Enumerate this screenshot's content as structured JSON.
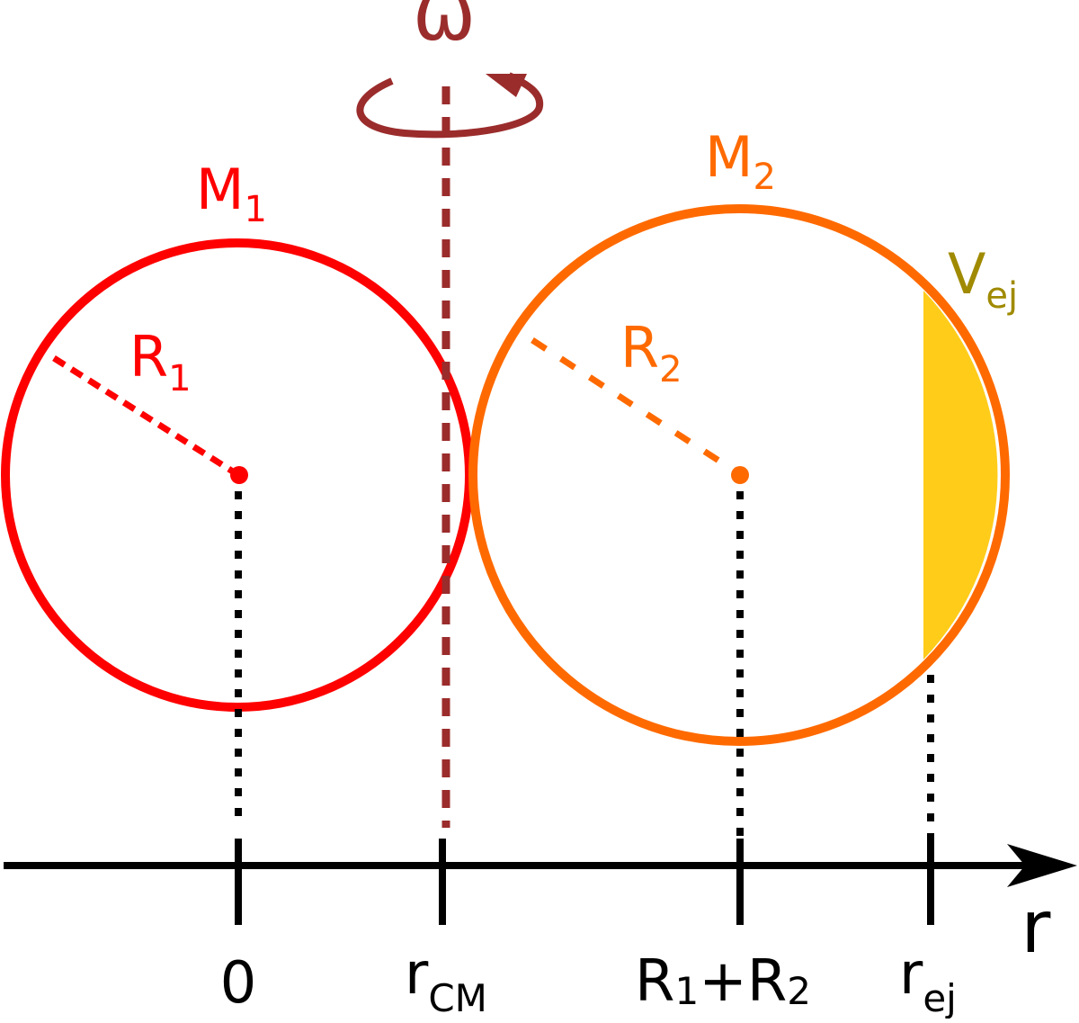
{
  "colors": {
    "star1": "#ff0000",
    "star2": "#ff6a00",
    "rotation": "#9b2c2c",
    "ejecta_fill": "#ffcc1a",
    "ejecta_label": "#a08a00",
    "axis": "#000000"
  },
  "rotation": {
    "symbol": "ω"
  },
  "star1": {
    "mass_label": "M",
    "mass_sub": "1",
    "radius_label": "R",
    "radius_sub": "1"
  },
  "star2": {
    "mass_label": "M",
    "mass_sub": "2",
    "radius_label": "R",
    "radius_sub": "2"
  },
  "ejecta": {
    "label": "V",
    "label_sub": "ej"
  },
  "axis": {
    "name": "r",
    "ticks": [
      {
        "label": "0",
        "sub": ""
      },
      {
        "label": "r",
        "sub": "CM"
      },
      {
        "label": "R",
        "sub": "1",
        "rest": "+R",
        "rest_sub": "2"
      },
      {
        "label": "r",
        "sub": "ej"
      }
    ]
  }
}
